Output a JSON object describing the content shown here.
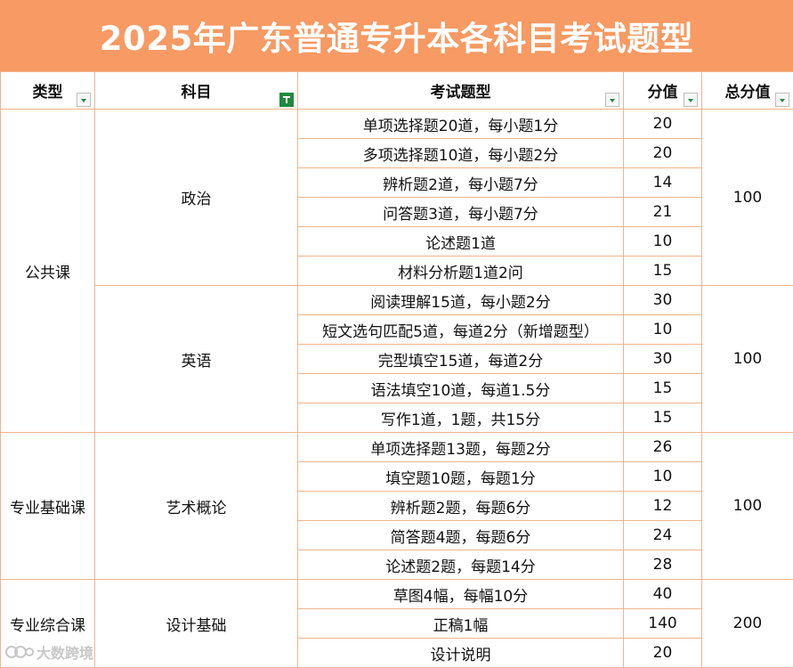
{
  "title": "2025年广东普通专升本各科目考试题型",
  "headers": {
    "type": "类型",
    "subject": "科目",
    "question_type": "考试题型",
    "score": "分值",
    "total": "总分值"
  },
  "groups": {
    "public": "公共课",
    "professional_basic": "专业基础课",
    "professional_comprehensive": "专业综合课"
  },
  "subjects": {
    "politics": "政治",
    "english": "英语",
    "art": "艺术概论",
    "design": "设计基础"
  },
  "totals": {
    "politics": "100",
    "english": "100",
    "art": "100",
    "design": "200"
  },
  "rows": [
    {
      "question": "单项选择题20道，每小题1分",
      "score": "20"
    },
    {
      "question": "多项选择题10道，每小题2分",
      "score": "20"
    },
    {
      "question": "辨析题2道，每小题7分",
      "score": "14"
    },
    {
      "question": "问答题3道，每小题7分",
      "score": "21"
    },
    {
      "question": "论述题1道",
      "score": "10"
    },
    {
      "question": "材料分析题1道2问",
      "score": "15"
    },
    {
      "question": "阅读理解15道，每小题2分",
      "score": "30"
    },
    {
      "question": "短文选句匹配5道，每道2分（新增题型）",
      "score": "10"
    },
    {
      "question": "完型填空15道，每道2分",
      "score": "30"
    },
    {
      "question": "语法填空10道，每道1.5分",
      "score": "15"
    },
    {
      "question": "写作1道，1题，共15分",
      "score": "15"
    },
    {
      "question": "单项选择题13题，每题2分",
      "score": "26"
    },
    {
      "question": "填空题10题，每题1分",
      "score": "10"
    },
    {
      "question": "辨析题2题，每题6分",
      "score": "12"
    },
    {
      "question": "简答题4题，每题6分",
      "score": "24"
    },
    {
      "question": "论述题2题，每题14分",
      "score": "28"
    },
    {
      "question": "草图4幅，每幅10分",
      "score": "40"
    },
    {
      "question": "正稿1幅",
      "score": "140"
    },
    {
      "question": "设计说明",
      "score": "20"
    }
  ],
  "watermark": "大数跨境",
  "colors": {
    "banner": "#f79a63",
    "border": "#f0b48e",
    "filter_green": "#1f8a3e"
  },
  "icons": [
    "filter-dropdown-icon",
    "filter-active-icon",
    "watermark-logo-icon"
  ]
}
